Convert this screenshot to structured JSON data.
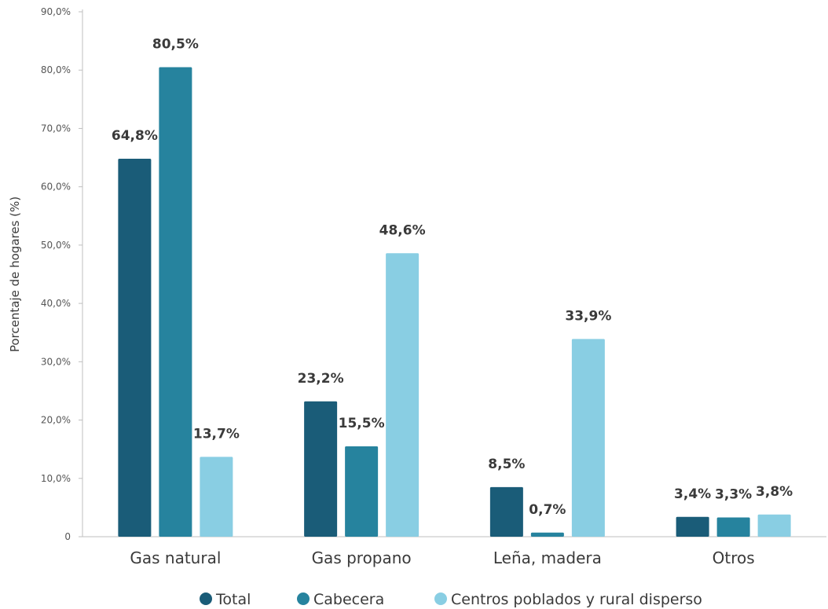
{
  "chart_data": {
    "type": "bar",
    "ylabel": "Porcentaje de hogares (%)",
    "xlabel": "",
    "ylim": [
      0,
      90
    ],
    "yticks": [
      "0",
      "10,0%",
      "20,0%",
      "30,0%",
      "40,0%",
      "50,0%",
      "60,0%",
      "70,0%",
      "80,0%",
      "90,0%"
    ],
    "categories": [
      "Gas natural",
      "Gas propano",
      "Leña, madera",
      "Otros"
    ],
    "series": [
      {
        "name": "Total",
        "color": "#1a5c78",
        "values": [
          64.8,
          23.2,
          8.5,
          3.4
        ],
        "labels": [
          "64,8%",
          "23,2%",
          "8,5%",
          "3,4%"
        ]
      },
      {
        "name": "Cabecera",
        "color": "#26839e",
        "values": [
          80.5,
          15.5,
          0.7,
          3.3
        ],
        "labels": [
          "80,5%",
          "15,5%",
          "0,7%",
          "3,3%"
        ]
      },
      {
        "name": "Centros poblados y rural disperso",
        "color": "#89cee3",
        "values": [
          13.7,
          48.6,
          33.9,
          3.8
        ],
        "labels": [
          "13,7%",
          "48,6%",
          "33,9%",
          "3,8%"
        ]
      }
    ],
    "legend_position": "bottom",
    "grid": false
  }
}
